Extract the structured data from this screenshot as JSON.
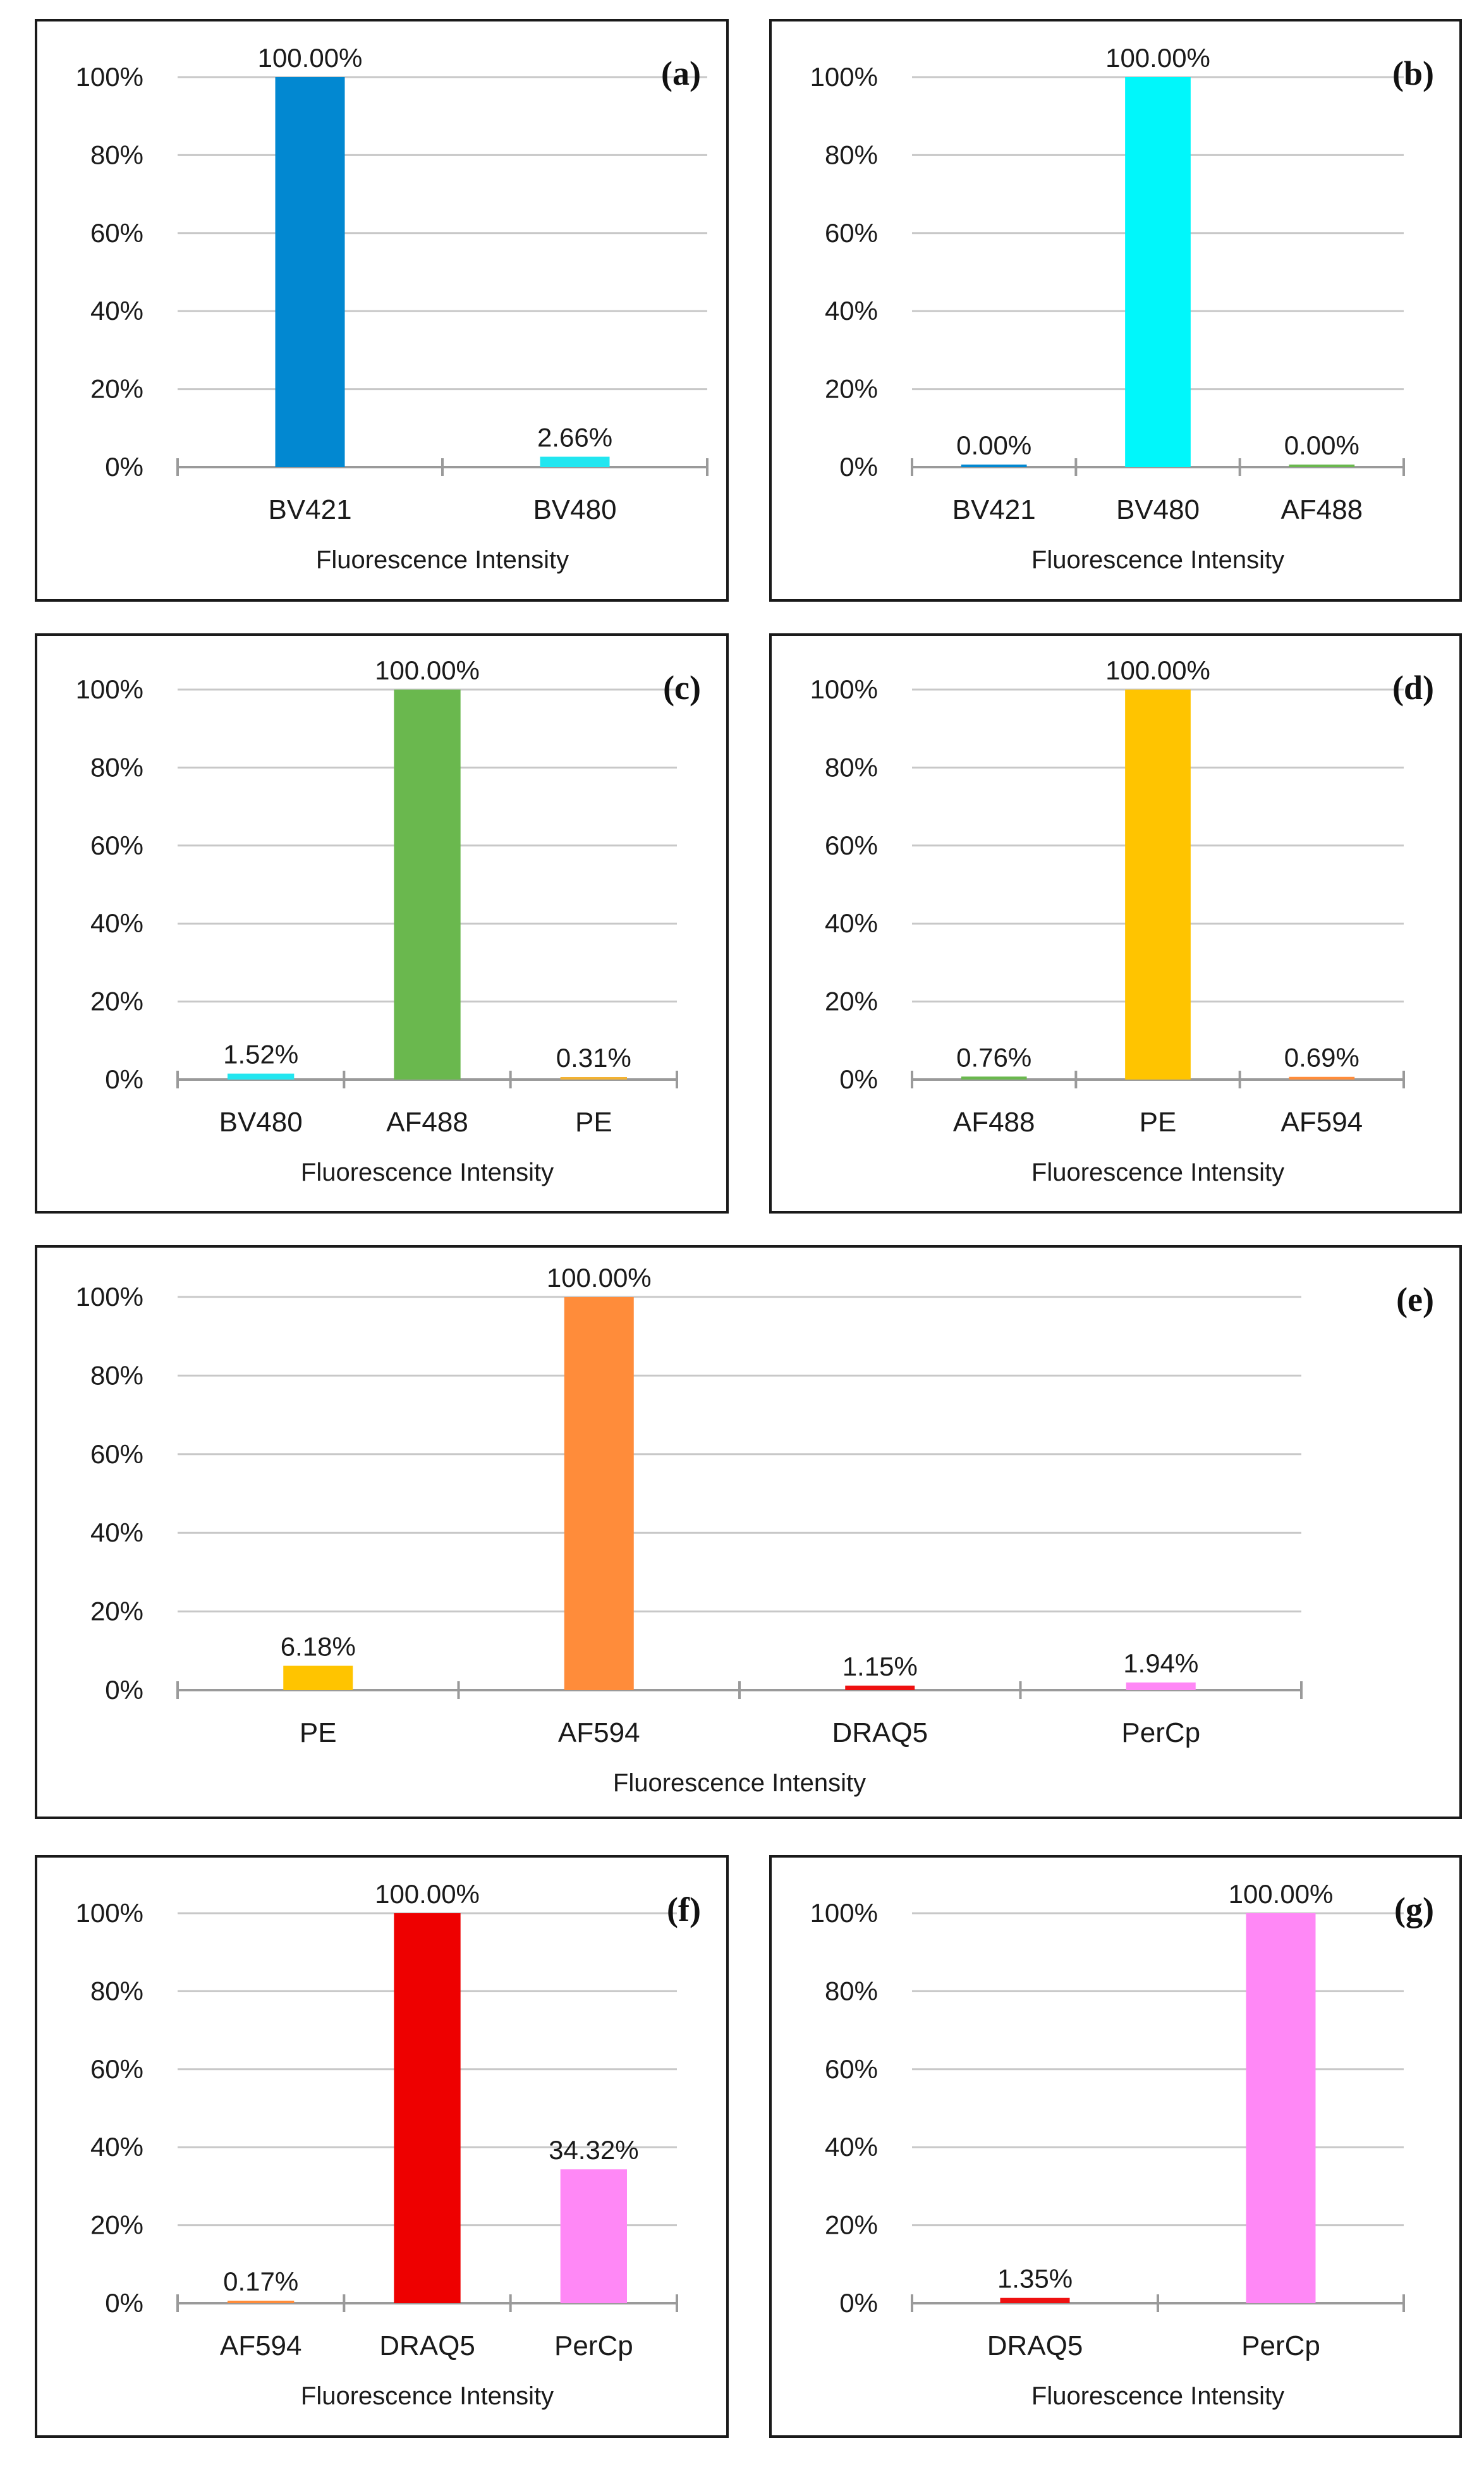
{
  "chart_data": [
    {
      "type": "bar",
      "panel_label": "(a)",
      "categories": [
        "BV421",
        "BV480"
      ],
      "values": [
        100.0,
        2.66
      ],
      "value_labels": [
        "100.00%",
        "2.66%"
      ],
      "colors": [
        "#0288d1",
        "#22e6f0"
      ],
      "xlabel": "Fluorescence Intensity",
      "ylabel": "",
      "ylim": [
        0,
        100
      ],
      "yticks": [
        "0%",
        "20%",
        "40%",
        "60%",
        "80%",
        "100%"
      ],
      "grid": true
    },
    {
      "type": "bar",
      "panel_label": "(b)",
      "categories": [
        "BV421",
        "BV480",
        "AF488"
      ],
      "values": [
        0.0,
        100.0,
        0.0
      ],
      "value_labels": [
        "0.00%",
        "100.00%",
        "0.00%"
      ],
      "colors": [
        "#0288d1",
        "#00f7fb",
        "#6ab84e"
      ],
      "xlabel": "Fluorescence Intensity",
      "ylabel": "",
      "ylim": [
        0,
        100
      ],
      "yticks": [
        "0%",
        "20%",
        "40%",
        "60%",
        "80%",
        "100%"
      ],
      "grid": true
    },
    {
      "type": "bar",
      "panel_label": "(c)",
      "categories": [
        "BV480",
        "AF488",
        "PE"
      ],
      "values": [
        1.52,
        100.0,
        0.31
      ],
      "value_labels": [
        "1.52%",
        "100.00%",
        "0.31%"
      ],
      "colors": [
        "#22e6f0",
        "#6ab84e",
        "#f2b233"
      ],
      "xlabel": "Fluorescence Intensity",
      "ylabel": "",
      "ylim": [
        0,
        100
      ],
      "yticks": [
        "0%",
        "20%",
        "40%",
        "60%",
        "80%",
        "100%"
      ],
      "grid": true
    },
    {
      "type": "bar",
      "panel_label": "(d)",
      "categories": [
        "AF488",
        "PE",
        "AF594"
      ],
      "values": [
        0.76,
        100.0,
        0.69
      ],
      "value_labels": [
        "0.76%",
        "100.00%",
        "0.69%"
      ],
      "colors": [
        "#6ab84e",
        "#ffc400",
        "#ff8c3a"
      ],
      "xlabel": "Fluorescence Intensity",
      "ylabel": "",
      "ylim": [
        0,
        100
      ],
      "yticks": [
        "0%",
        "20%",
        "40%",
        "60%",
        "80%",
        "100%"
      ],
      "grid": true
    },
    {
      "type": "bar",
      "panel_label": "(e)",
      "categories": [
        "PE",
        "AF594",
        "DRAQ5",
        "PerCp"
      ],
      "values": [
        6.18,
        100.0,
        1.15,
        1.94
      ],
      "value_labels": [
        "6.18%",
        "100.00%",
        "1.15%",
        "1.94%"
      ],
      "colors": [
        "#ffc400",
        "#ff8c3a",
        "#ee1111",
        "#ff88f6"
      ],
      "xlabel": "Fluorescence Intensity",
      "ylabel": "",
      "ylim": [
        0,
        100
      ],
      "yticks": [
        "0%",
        "20%",
        "40%",
        "60%",
        "80%",
        "100%"
      ],
      "grid": true
    },
    {
      "type": "bar",
      "panel_label": "(f)",
      "categories": [
        "AF594",
        "DRAQ5",
        "PerCp"
      ],
      "values": [
        0.17,
        100.0,
        34.32
      ],
      "value_labels": [
        "0.17%",
        "100.00%",
        "34.32%"
      ],
      "colors": [
        "#ff8c3a",
        "#ee0000",
        "#ff88f6"
      ],
      "xlabel": "Fluorescence Intensity",
      "ylabel": "",
      "ylim": [
        0,
        100
      ],
      "yticks": [
        "0%",
        "20%",
        "40%",
        "60%",
        "80%",
        "100%"
      ],
      "grid": true
    },
    {
      "type": "bar",
      "panel_label": "(g)",
      "categories": [
        "DRAQ5",
        "PerCp"
      ],
      "values": [
        1.35,
        100.0
      ],
      "value_labels": [
        "1.35%",
        "100.00%"
      ],
      "colors": [
        "#ee1111",
        "#ff88f6"
      ],
      "xlabel": "Fluorescence Intensity",
      "ylabel": "",
      "ylim": [
        0,
        100
      ],
      "yticks": [
        "0%",
        "20%",
        "40%",
        "60%",
        "80%",
        "100%"
      ],
      "grid": true
    }
  ]
}
